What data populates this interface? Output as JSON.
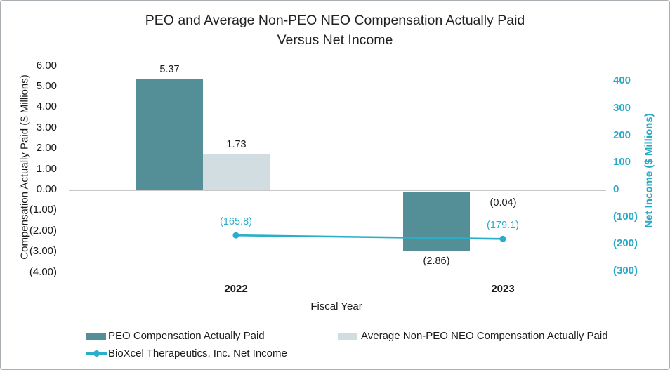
{
  "window": {
    "background": "#FFFFFF",
    "border_color": "#A9AEB3"
  },
  "chart_data": {
    "type": "combo-bar-line",
    "title": "PEO and Average Non-PEO NEO Compensation Actually Paid Versus Net Income",
    "title_line1": "PEO and Average Non-PEO NEO Compensation Actually Paid",
    "title_line2": "Versus Net Income",
    "categories": [
      "2022",
      "2023"
    ],
    "x_axis": {
      "title": "Fiscal Year"
    },
    "left_axis": {
      "title": "Compensation Actually Paid ($ Millions)",
      "min": -4,
      "max": 6,
      "step": 1,
      "tick_labels": [
        "6.00",
        "5.00",
        "4.00",
        "3.00",
        "2.00",
        "1.00",
        "0.00",
        "(1.00)",
        "(2.00)",
        "(3.00)",
        "(4.00)"
      ]
    },
    "right_axis": {
      "title": "Net Income ($ Millions)",
      "min": -300,
      "max": 400,
      "step": 100,
      "color": "#2AA9C6",
      "tick_labels": [
        "400",
        "300",
        "200",
        "100",
        "0",
        "(100)",
        "(200)",
        "(300)"
      ]
    },
    "series": [
      {
        "name": "PEO Compensation Actually Paid",
        "type": "bar",
        "axis": "left",
        "color": "#548E96",
        "values": [
          5.37,
          -2.86
        ],
        "data_labels": [
          "5.37",
          "(2.86)"
        ]
      },
      {
        "name": "Average Non-PEO NEO Compensation Actually Paid",
        "type": "bar",
        "axis": "left",
        "color": "#D1DDE1",
        "values": [
          1.73,
          -0.04
        ],
        "data_labels": [
          "1.73",
          "(0.04)"
        ]
      },
      {
        "name": "BioXcel Therapeutics, Inc. Net Income",
        "type": "line",
        "axis": "right",
        "color": "#2BAEC9",
        "values": [
          -165.8,
          -179.1
        ],
        "data_labels": [
          "(165.8)",
          "(179.1)"
        ]
      }
    ],
    "legend": {
      "position": "bottom",
      "entries": [
        "PEO Compensation Actually Paid",
        "Average Non-PEO NEO Compensation Actually Paid",
        "BioXcel Therapeutics, Inc. Net Income"
      ]
    },
    "grid": "none",
    "zero_line_color": "#C8C8C8",
    "xlim_categories": 2,
    "background": "#FFFFFF"
  }
}
